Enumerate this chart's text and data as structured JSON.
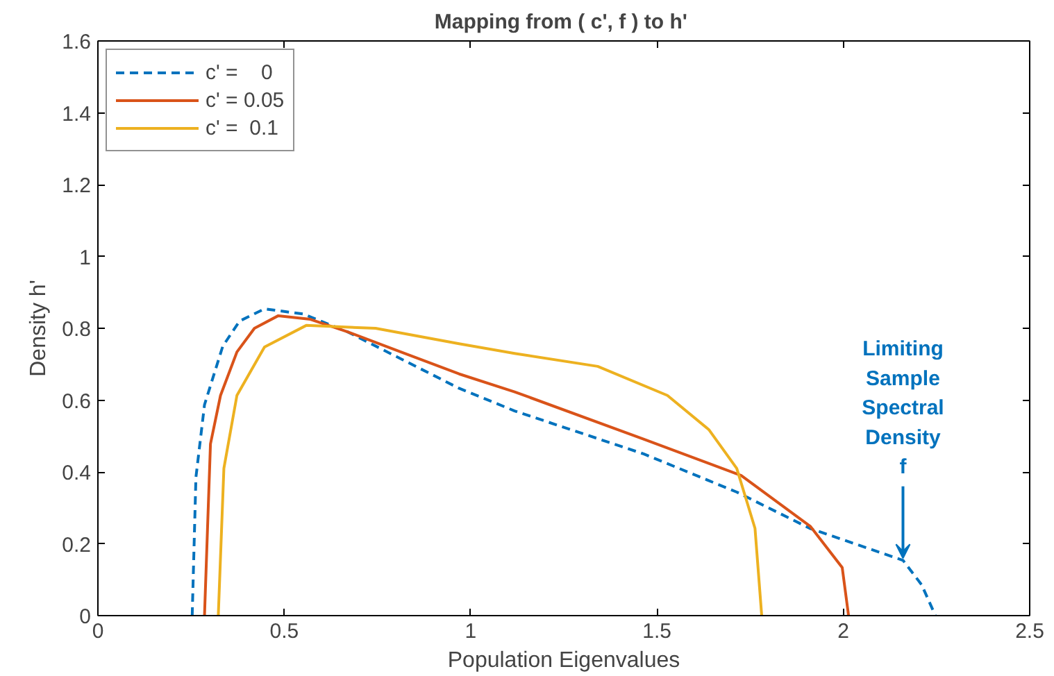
{
  "chart_data": {
    "type": "line",
    "title": "Mapping from ( c', f ) to  h'",
    "xlabel": "Population Eigenvalues",
    "ylabel": "Density h'",
    "xlim": [
      0,
      2.5
    ],
    "ylim": [
      0,
      1.6
    ],
    "xticks": [
      0,
      0.5,
      1,
      1.5,
      2,
      2.5
    ],
    "yticks": [
      0,
      0.2,
      0.4,
      0.6,
      0.8,
      1,
      1.2,
      1.4,
      1.6
    ],
    "grid": false,
    "legend": "top left",
    "series": [
      {
        "name": "c' =    0",
        "color": "#0072bd",
        "line_style": "dashed",
        "x": [
          0.253,
          0.263,
          0.286,
          0.335,
          0.38,
          0.447,
          0.55,
          0.67,
          0.969,
          1.118,
          1.465,
          1.714,
          1.91,
          2.16,
          2.21,
          2.247
        ],
        "values": [
          0,
          0.385,
          0.587,
          0.75,
          0.82,
          0.854,
          0.84,
          0.79,
          0.633,
          0.57,
          0.45,
          0.344,
          0.243,
          0.154,
          0.086,
          0
        ]
      },
      {
        "name": "c' = 0.05",
        "color": "#d95319",
        "line_style": "solid",
        "x": [
          0.286,
          0.302,
          0.329,
          0.373,
          0.42,
          0.484,
          0.57,
          0.67,
          0.969,
          1.118,
          1.465,
          1.726,
          1.912,
          1.997,
          2.014
        ],
        "values": [
          0,
          0.478,
          0.613,
          0.734,
          0.8,
          0.835,
          0.825,
          0.79,
          0.673,
          0.623,
          0.491,
          0.39,
          0.248,
          0.134,
          0
        ]
      },
      {
        "name": "c' =  0.1",
        "color": "#edb120",
        "line_style": "solid",
        "x": [
          0.323,
          0.338,
          0.373,
          0.447,
          0.559,
          0.745,
          0.969,
          1.118,
          1.341,
          1.528,
          1.639,
          1.714,
          1.763,
          1.781
        ],
        "values": [
          0,
          0.41,
          0.613,
          0.748,
          0.808,
          0.8,
          0.757,
          0.73,
          0.694,
          0.613,
          0.518,
          0.41,
          0.243,
          0
        ]
      }
    ],
    "annotations": [
      {
        "text": "Limiting\nSample\nSpectral\nDensity\nf",
        "x": 2.16,
        "y": 0.16
      }
    ]
  }
}
